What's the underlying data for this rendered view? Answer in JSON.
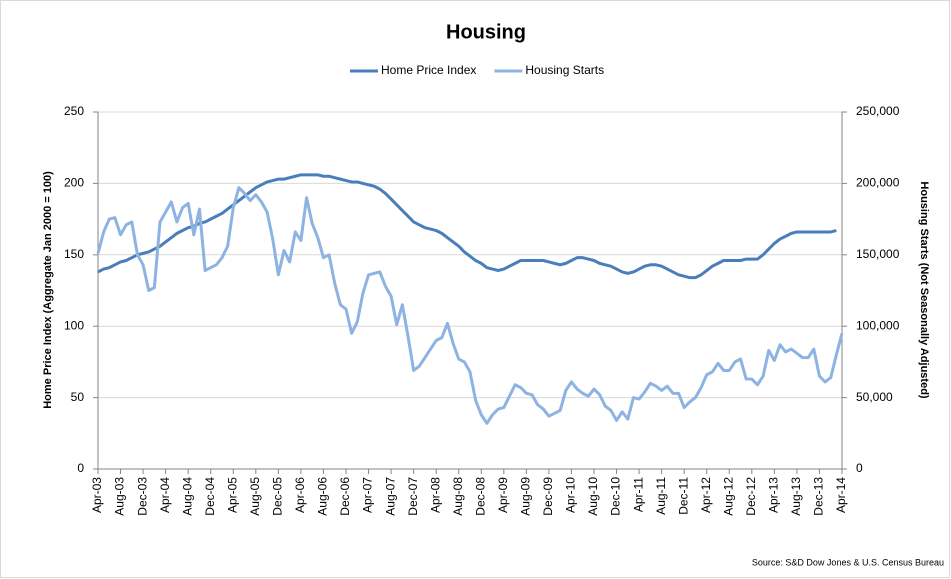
{
  "chart_data": {
    "type": "line",
    "title": "Housing",
    "legend": "top",
    "grid": true,
    "ylabel": "Home Price Index (Aggregate Jan 2000 = 100)",
    "y2label": "Housing Starts (Not Seasonally Adjusted)",
    "source": "Source: S&D Dow Jones & U.S. Census Bureau",
    "categories": [
      "Apr-03",
      null,
      null,
      null,
      "Aug-03",
      null,
      null,
      null,
      "Dec-03",
      null,
      null,
      null,
      "Apr-04",
      null,
      null,
      null,
      "Aug-04",
      null,
      null,
      null,
      "Dec-04",
      null,
      null,
      null,
      "Apr-05",
      null,
      null,
      null,
      "Aug-05",
      null,
      null,
      null,
      "Dec-05",
      null,
      null,
      null,
      "Apr-06",
      null,
      null,
      null,
      "Aug-06",
      null,
      null,
      null,
      "Dec-06",
      null,
      null,
      null,
      "Apr-07",
      null,
      null,
      null,
      "Aug-07",
      null,
      null,
      null,
      "Dec-07",
      null,
      null,
      null,
      "Apr-08",
      null,
      null,
      null,
      "Aug-08",
      null,
      null,
      null,
      "Dec-08",
      null,
      null,
      null,
      "Apr-09",
      null,
      null,
      null,
      "Aug-09",
      null,
      null,
      null,
      "Dec-09",
      null,
      null,
      null,
      "Apr-10",
      null,
      null,
      null,
      "Aug-10",
      null,
      null,
      null,
      "Dec-10",
      null,
      null,
      null,
      "Apr-11",
      null,
      null,
      null,
      "Aug-11",
      null,
      null,
      null,
      "Dec-11",
      null,
      null,
      null,
      "Apr-12",
      null,
      null,
      null,
      "Aug-12",
      null,
      null,
      null,
      "Dec-12",
      null,
      null,
      null,
      "Apr-13",
      null,
      null,
      null,
      "Aug-13",
      null,
      null,
      null,
      "Dec-13",
      null,
      null,
      null,
      "Apr-14"
    ],
    "ylim": [
      0,
      250
    ],
    "yticks": [
      0,
      50,
      100,
      150,
      200,
      250
    ],
    "y2lim": [
      0,
      250000
    ],
    "y2ticks": [
      0,
      {
        "value": 50000,
        "label": "50,000"
      },
      {
        "value": 100000,
        "label": "100,000"
      },
      {
        "value": 150000,
        "label": "150,000"
      },
      {
        "value": 200000,
        "label": "200,000"
      },
      {
        "value": 250000,
        "label": "250,000"
      }
    ],
    "series": [
      {
        "name": "Home Price Index",
        "color": "#4a7ebb",
        "values": [
          138,
          140,
          141,
          143,
          145,
          146,
          148,
          150,
          151,
          152,
          154,
          156,
          159,
          162,
          165,
          167,
          169,
          170,
          172,
          173,
          175,
          177,
          179,
          182,
          185,
          188,
          191,
          194,
          197,
          199,
          201,
          202,
          203,
          203,
          204,
          205,
          206,
          206,
          206,
          206,
          205,
          205,
          204,
          203,
          202,
          201,
          201,
          200,
          199,
          198,
          196,
          193,
          189,
          185,
          181,
          177,
          173,
          171,
          169,
          168,
          167,
          165,
          162,
          159,
          156,
          152,
          149,
          146,
          144,
          141,
          140,
          139,
          140,
          142,
          144,
          146,
          146,
          146,
          146,
          146,
          145,
          144,
          143,
          144,
          146,
          148,
          148,
          147,
          146,
          144,
          143,
          142,
          140,
          138,
          137,
          138,
          140,
          142,
          143,
          143,
          142,
          140,
          138,
          136,
          135,
          134,
          134,
          136,
          139,
          142,
          144,
          146,
          146,
          146,
          146,
          147,
          147,
          147,
          150,
          154,
          158,
          161,
          163,
          165,
          166,
          166,
          166,
          166,
          166,
          166,
          166,
          167,
          null
        ]
      },
      {
        "name": "Housing Starts",
        "color": "#8db3e2",
        "axis": "y2",
        "values": [
          151000,
          166000,
          175000,
          176000,
          164000,
          171000,
          173000,
          150000,
          143000,
          125000,
          127000,
          173000,
          180000,
          187000,
          173000,
          183000,
          186000,
          164000,
          182000,
          139000,
          141000,
          143000,
          148000,
          156000,
          183000,
          197000,
          193000,
          188000,
          192000,
          187000,
          180000,
          161000,
          136000,
          153000,
          145000,
          166000,
          160000,
          190000,
          172000,
          162000,
          148000,
          150000,
          130000,
          115000,
          112000,
          95000,
          103000,
          123000,
          136000,
          137000,
          138000,
          128000,
          121000,
          101000,
          115000,
          93000,
          69000,
          72000,
          78000,
          84000,
          90000,
          92000,
          102000,
          88000,
          77000,
          75000,
          68000,
          48000,
          38000,
          32000,
          38000,
          42000,
          43000,
          51000,
          59000,
          57000,
          53000,
          52000,
          45000,
          42000,
          37000,
          39000,
          41000,
          55000,
          61000,
          56000,
          53000,
          51000,
          56000,
          52000,
          44000,
          41000,
          34000,
          40000,
          35000,
          50000,
          49000,
          54000,
          60000,
          58000,
          55000,
          58000,
          53000,
          53000,
          43000,
          47000,
          50000,
          57000,
          66000,
          68000,
          74000,
          69000,
          69000,
          75000,
          77000,
          63000,
          63000,
          59000,
          65000,
          83000,
          76000,
          87000,
          82000,
          84000,
          81000,
          78000,
          78000,
          84000,
          65000,
          61000,
          64000,
          80000,
          95000
        ]
      }
    ]
  }
}
